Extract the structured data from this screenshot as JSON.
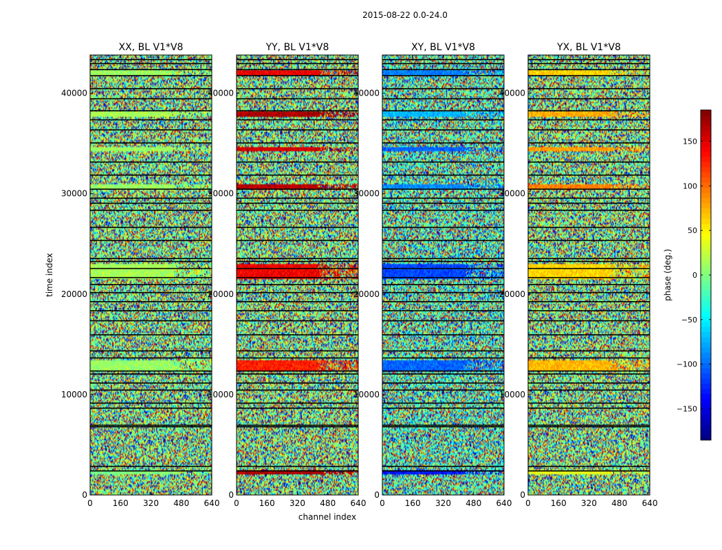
{
  "figure_title": "2015-08-22 0.0-24.0",
  "x_axis_label": "channel index",
  "y_axis_label": "time index",
  "colorbar_label": "phase (deg.)",
  "colormap": "jet",
  "chart_data": [
    {
      "type": "heatmap",
      "title": "XX, BL V1*V8",
      "xlim": [
        0,
        640
      ],
      "ylim": [
        0,
        43800
      ],
      "x_ticks": [
        0,
        160,
        320,
        480,
        640
      ],
      "y_ticks": [
        0,
        10000,
        20000,
        30000,
        40000
      ],
      "value_range": [
        -180,
        180
      ],
      "dominant_phase": 0,
      "coherent_bands": [
        {
          "y": [
            2100,
            2500
          ],
          "phase": 0
        },
        {
          "y": [
            12300,
            13400
          ],
          "phase": 10
        },
        {
          "y": [
            21500,
            23000
          ],
          "phase": 15
        },
        {
          "y": [
            30400,
            30900
          ],
          "phase": 10
        },
        {
          "y": [
            34200,
            34600
          ],
          "phase": 10
        },
        {
          "y": [
            37700,
            38200
          ],
          "phase": 15
        },
        {
          "y": [
            41800,
            42300
          ],
          "phase": 10
        }
      ]
    },
    {
      "type": "heatmap",
      "title": "YY, BL V1*V8",
      "xlim": [
        0,
        640
      ],
      "ylim": [
        0,
        43800
      ],
      "x_ticks": [
        0,
        160,
        320,
        480,
        640
      ],
      "y_ticks": [
        0,
        10000,
        20000,
        30000,
        40000
      ],
      "value_range": [
        -180,
        180
      ],
      "dominant_phase": 0,
      "coherent_bands": [
        {
          "y": [
            2100,
            2500
          ],
          "phase": 165
        },
        {
          "y": [
            12300,
            13400
          ],
          "phase": 125
        },
        {
          "y": [
            21500,
            23000
          ],
          "phase": 140
        },
        {
          "y": [
            30400,
            30900
          ],
          "phase": 160
        },
        {
          "y": [
            34200,
            34600
          ],
          "phase": 150
        },
        {
          "y": [
            37700,
            38200
          ],
          "phase": 165
        },
        {
          "y": [
            41800,
            42300
          ],
          "phase": 140
        }
      ]
    },
    {
      "type": "heatmap",
      "title": "XY, BL V1*V8",
      "xlim": [
        0,
        640
      ],
      "ylim": [
        0,
        43800
      ],
      "x_ticks": [
        0,
        160,
        320,
        480,
        640
      ],
      "y_ticks": [
        0,
        10000,
        20000,
        30000,
        40000
      ],
      "value_range": [
        -180,
        180
      ],
      "dominant_phase": -20,
      "coherent_bands": [
        {
          "y": [
            2100,
            2500
          ],
          "phase": -130
        },
        {
          "y": [
            12300,
            13400
          ],
          "phase": -100
        },
        {
          "y": [
            21500,
            23000
          ],
          "phase": -110
        },
        {
          "y": [
            30400,
            30900
          ],
          "phase": -85
        },
        {
          "y": [
            34200,
            34600
          ],
          "phase": -100
        },
        {
          "y": [
            37700,
            38200
          ],
          "phase": -70
        },
        {
          "y": [
            41800,
            42300
          ],
          "phase": -90
        }
      ]
    },
    {
      "type": "heatmap",
      "title": "YX, BL V1*V8",
      "xlim": [
        0,
        640
      ],
      "ylim": [
        0,
        43800
      ],
      "x_ticks": [
        0,
        160,
        320,
        480,
        640
      ],
      "y_ticks": [
        0,
        10000,
        20000,
        30000,
        40000
      ],
      "value_range": [
        -180,
        180
      ],
      "dominant_phase": 0,
      "coherent_bands": [
        {
          "y": [
            2100,
            2500
          ],
          "phase": 40
        },
        {
          "y": [
            12300,
            13400
          ],
          "phase": 70
        },
        {
          "y": [
            21500,
            23000
          ],
          "phase": 60
        },
        {
          "y": [
            30400,
            30900
          ],
          "phase": 90
        },
        {
          "y": [
            34200,
            34600
          ],
          "phase": 80
        },
        {
          "y": [
            37700,
            38200
          ],
          "phase": 75
        },
        {
          "y": [
            41800,
            42300
          ],
          "phase": 60
        }
      ]
    }
  ],
  "colorbar": {
    "range": [
      -185,
      185
    ],
    "ticks": [
      -150,
      -100,
      -50,
      0,
      50,
      100,
      150
    ],
    "tick_labels": [
      "−150",
      "−100",
      "−50",
      "0",
      "50",
      "100",
      "150"
    ]
  }
}
